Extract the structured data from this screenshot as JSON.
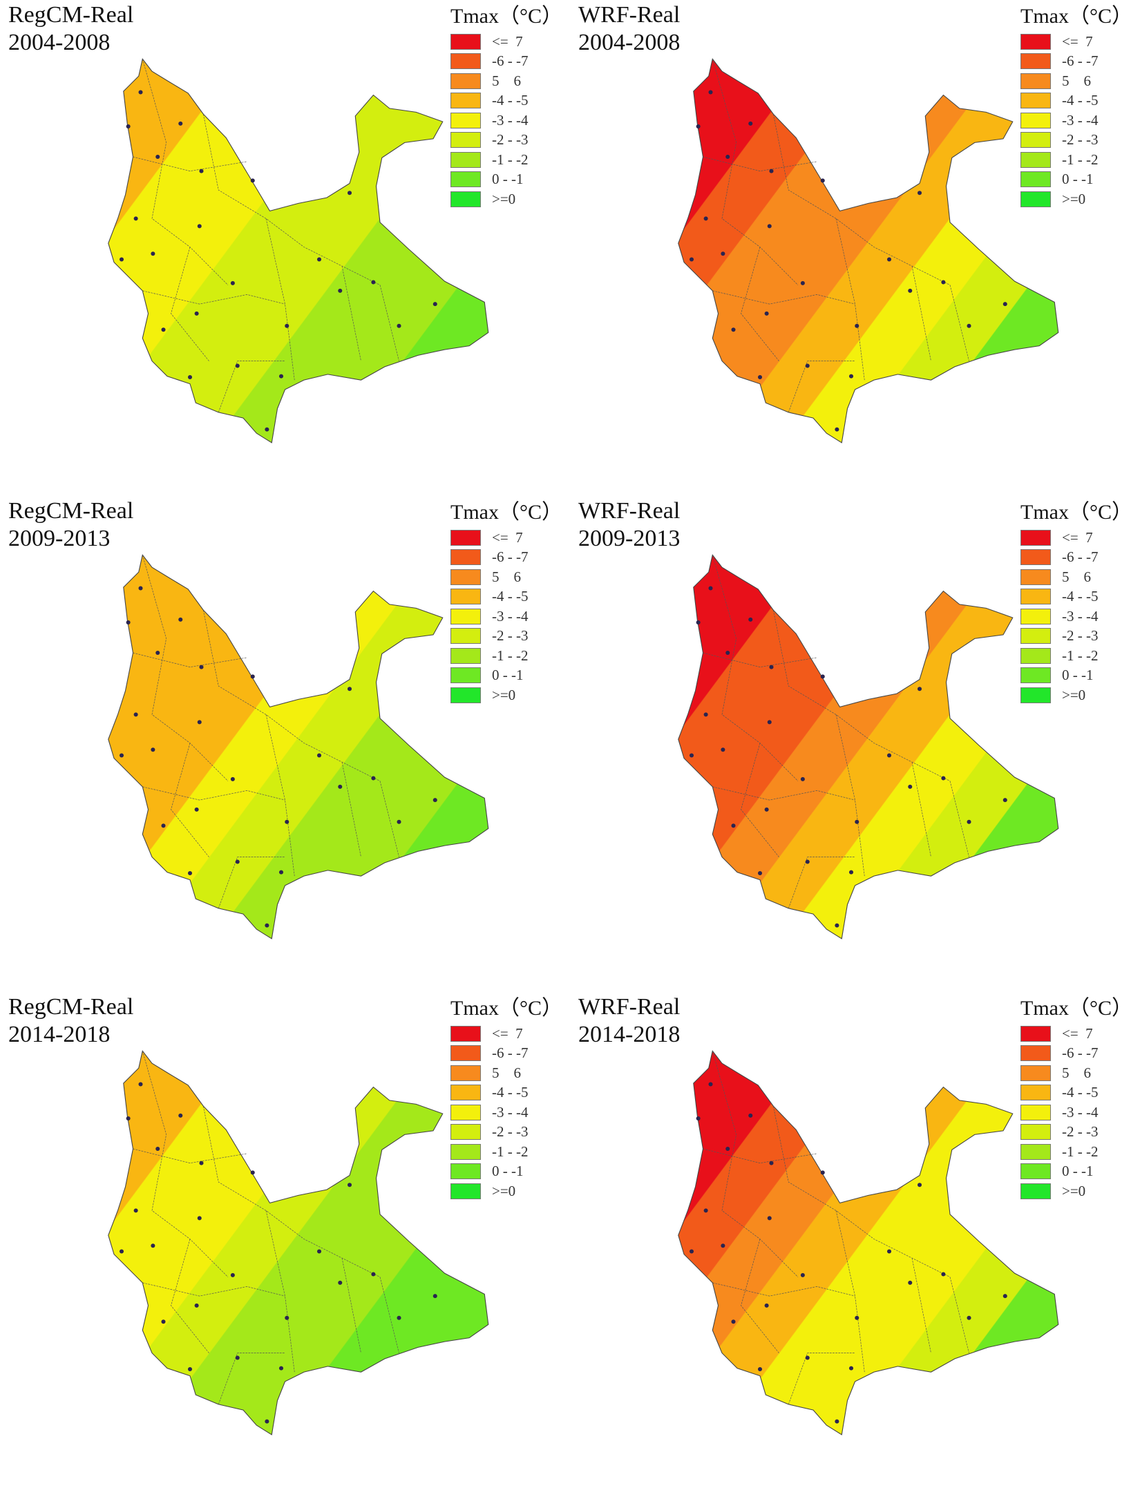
{
  "legend": {
    "title": "Tmax（°C）",
    "classes": [
      {
        "label": "<=  7",
        "color": "#e8101a"
      },
      {
        "label": "-6 - -7",
        "color": "#f25a1a"
      },
      {
        "label": "5    6",
        "color": "#f78a1e"
      },
      {
        "label": "-4 - -5",
        "color": "#f9b612"
      },
      {
        "label": "-3 - -4",
        "color": "#f3f00c"
      },
      {
        "label": "-2 - -3",
        "color": "#d3ee0f"
      },
      {
        "label": "-1 - -2",
        "color": "#a4e81a"
      },
      {
        "label": "0 - -1",
        "color": "#6ee823"
      },
      {
        "label": ">=0",
        "color": "#22e62a"
      }
    ]
  },
  "panels": [
    {
      "model": "RegCM-Real",
      "period": "2004-2008",
      "zones": [
        3,
        4,
        4,
        5,
        5,
        6,
        6,
        7
      ]
    },
    {
      "model": "WRF-Real",
      "period": "2004-2008",
      "zones": [
        0,
        1,
        2,
        2,
        3,
        4,
        5,
        7
      ]
    },
    {
      "model": "RegCM-Real",
      "period": "2009-2013",
      "zones": [
        3,
        3,
        3,
        4,
        5,
        6,
        6,
        7
      ]
    },
    {
      "model": "WRF-Real",
      "period": "2009-2013",
      "zones": [
        0,
        1,
        1,
        2,
        3,
        4,
        5,
        7
      ]
    },
    {
      "model": "RegCM-Real",
      "period": "2014-2018",
      "zones": [
        3,
        4,
        4,
        5,
        6,
        6,
        7,
        7
      ]
    },
    {
      "model": "WRF-Real",
      "period": "2014-2018",
      "zones": [
        0,
        1,
        2,
        3,
        4,
        4,
        5,
        7
      ]
    }
  ]
}
